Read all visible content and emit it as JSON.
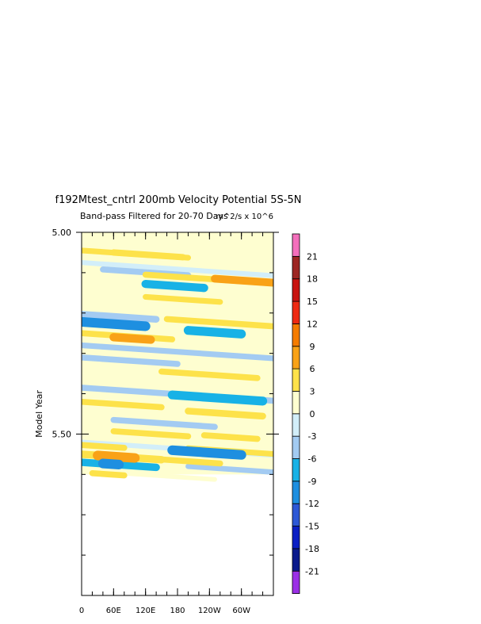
{
  "chart_data": {
    "type": "heatmap",
    "title": "f192Mtest_cntrl 200mb Velocity Potential 5S-5N",
    "subtitle": "Band-pass Filtered for 20-70 Days",
    "units": "m^2/s x 10^6",
    "ylabel": "Model Year",
    "xlabel": "",
    "x_ticks": [
      "0",
      "60E",
      "120E",
      "180",
      "120W",
      "60W"
    ],
    "y_ticks": [
      "5.00",
      "5.50"
    ],
    "x_range_deg": [
      0,
      360
    ],
    "y_range_years": [
      5.0,
      5.9
    ],
    "data_y_extent_years": [
      5.0,
      5.6
    ],
    "y_direction": "downward",
    "grid": false,
    "legend": "right",
    "levels": [
      "-21",
      "-18",
      "-15",
      "-12",
      "-9",
      "-6",
      "-3",
      "0",
      "3",
      "6",
      "9",
      "12",
      "15",
      "18",
      "21"
    ],
    "colors": [
      "#9b30e6",
      "#0a1a8c",
      "#0b1fc4",
      "#2d58d6",
      "#1e8fe0",
      "#18b2e6",
      "#a3cbf2",
      "#d2eef9",
      "#fefed0",
      "#fde24a",
      "#f9a217",
      "#f57c00",
      "#ee2a12",
      "#c81410",
      "#9d2623",
      "#f46fbc"
    ],
    "bands": [
      {
        "year": 5.023,
        "lon0": 0,
        "lon1": 360,
        "value": 0.6
      },
      {
        "year": 5.045,
        "lon0": 0,
        "lon1": 200,
        "value": 3.5
      },
      {
        "year": 5.05,
        "lon0": 60,
        "lon1": 190,
        "value": 4.5
      },
      {
        "year": 5.075,
        "lon0": 0,
        "lon1": 360,
        "value": -2.5
      },
      {
        "year": 5.092,
        "lon0": 40,
        "lon1": 200,
        "value": -4
      },
      {
        "year": 5.105,
        "lon0": 120,
        "lon1": 360,
        "value": 4
      },
      {
        "year": 5.115,
        "lon0": 250,
        "lon1": 360,
        "value": 6.5
      },
      {
        "year": 5.128,
        "lon0": 120,
        "lon1": 230,
        "value": -7
      },
      {
        "year": 5.16,
        "lon0": 120,
        "lon1": 260,
        "value": 3.5
      },
      {
        "year": 5.175,
        "lon0": 0,
        "lon1": 360,
        "value": 0.8
      },
      {
        "year": 5.203,
        "lon0": 0,
        "lon1": 140,
        "value": -5
      },
      {
        "year": 5.215,
        "lon0": 160,
        "lon1": 360,
        "value": 4
      },
      {
        "year": 5.222,
        "lon0": 0,
        "lon1": 120,
        "value": -9
      },
      {
        "year": 5.25,
        "lon0": 0,
        "lon1": 170,
        "value": 4
      },
      {
        "year": 5.26,
        "lon0": 60,
        "lon1": 130,
        "value": 7
      },
      {
        "year": 5.243,
        "lon0": 200,
        "lon1": 300,
        "value": -8
      },
      {
        "year": 5.28,
        "lon0": 0,
        "lon1": 360,
        "value": -3.5
      },
      {
        "year": 5.31,
        "lon0": 0,
        "lon1": 180,
        "value": -4
      },
      {
        "year": 5.313,
        "lon0": 80,
        "lon1": 180,
        "value": 3
      },
      {
        "year": 5.335,
        "lon0": 0,
        "lon1": 360,
        "value": 1
      },
      {
        "year": 5.345,
        "lon0": 150,
        "lon1": 330,
        "value": 4
      },
      {
        "year": 5.385,
        "lon0": 0,
        "lon1": 360,
        "value": -4
      },
      {
        "year": 5.395,
        "lon0": 50,
        "lon1": 210,
        "value": 0.5
      },
      {
        "year": 5.403,
        "lon0": 170,
        "lon1": 340,
        "value": -8
      },
      {
        "year": 5.42,
        "lon0": 0,
        "lon1": 150,
        "value": 4
      },
      {
        "year": 5.443,
        "lon0": 200,
        "lon1": 340,
        "value": 5
      },
      {
        "year": 5.45,
        "lon0": 0,
        "lon1": 360,
        "value": 1
      },
      {
        "year": 5.465,
        "lon0": 60,
        "lon1": 250,
        "value": -4
      },
      {
        "year": 5.493,
        "lon0": 60,
        "lon1": 200,
        "value": 4
      },
      {
        "year": 5.503,
        "lon0": 230,
        "lon1": 330,
        "value": 4
      },
      {
        "year": 5.52,
        "lon0": 0,
        "lon1": 360,
        "value": -2.5
      },
      {
        "year": 5.527,
        "lon0": 0,
        "lon1": 80,
        "value": 4
      },
      {
        "year": 5.535,
        "lon0": 200,
        "lon1": 360,
        "value": 3.5
      },
      {
        "year": 5.54,
        "lon0": 170,
        "lon1": 300,
        "value": -9
      },
      {
        "year": 5.55,
        "lon0": 0,
        "lon1": 150,
        "value": 6
      },
      {
        "year": 5.553,
        "lon0": 30,
        "lon1": 100,
        "value": 9
      },
      {
        "year": 5.562,
        "lon0": 140,
        "lon1": 260,
        "value": 4
      },
      {
        "year": 5.57,
        "lon0": 0,
        "lon1": 140,
        "value": -6
      },
      {
        "year": 5.573,
        "lon0": 40,
        "lon1": 70,
        "value": -9
      },
      {
        "year": 5.58,
        "lon0": 200,
        "lon1": 360,
        "value": -3
      },
      {
        "year": 5.59,
        "lon0": 0,
        "lon1": 250,
        "value": 2
      },
      {
        "year": 5.597,
        "lon0": 20,
        "lon1": 80,
        "value": 4
      }
    ]
  }
}
